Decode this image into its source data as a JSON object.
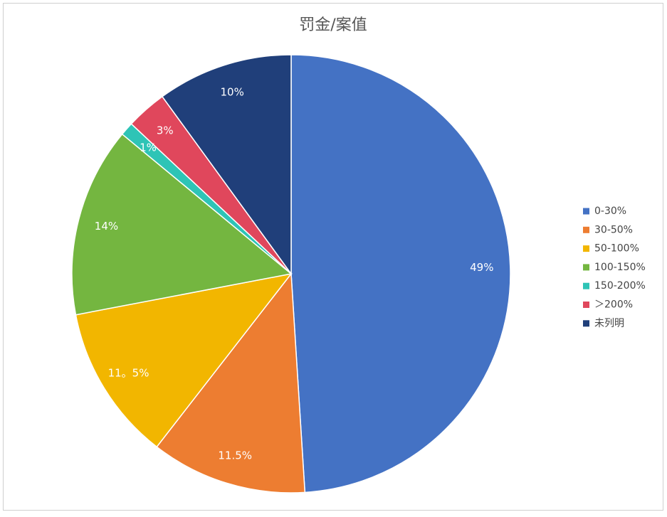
{
  "chart_data": {
    "type": "pie",
    "title": "罚金/案值",
    "categories": [
      "0-30%",
      "30-50%",
      "50-100%",
      "100-150%",
      "150-200%",
      "＞200%",
      "未列明"
    ],
    "values": [
      49,
      11.5,
      11.5,
      14,
      1,
      3,
      10
    ],
    "value_labels": [
      "49%",
      "11.5%",
      "11。5%",
      "14%",
      "1%",
      "3%",
      "10%"
    ],
    "colors": [
      "#4472c4",
      "#ed7d31",
      "#f2b600",
      "#74b640",
      "#2ec4b6",
      "#e0475c",
      "#203f7a"
    ],
    "legend": "right"
  }
}
